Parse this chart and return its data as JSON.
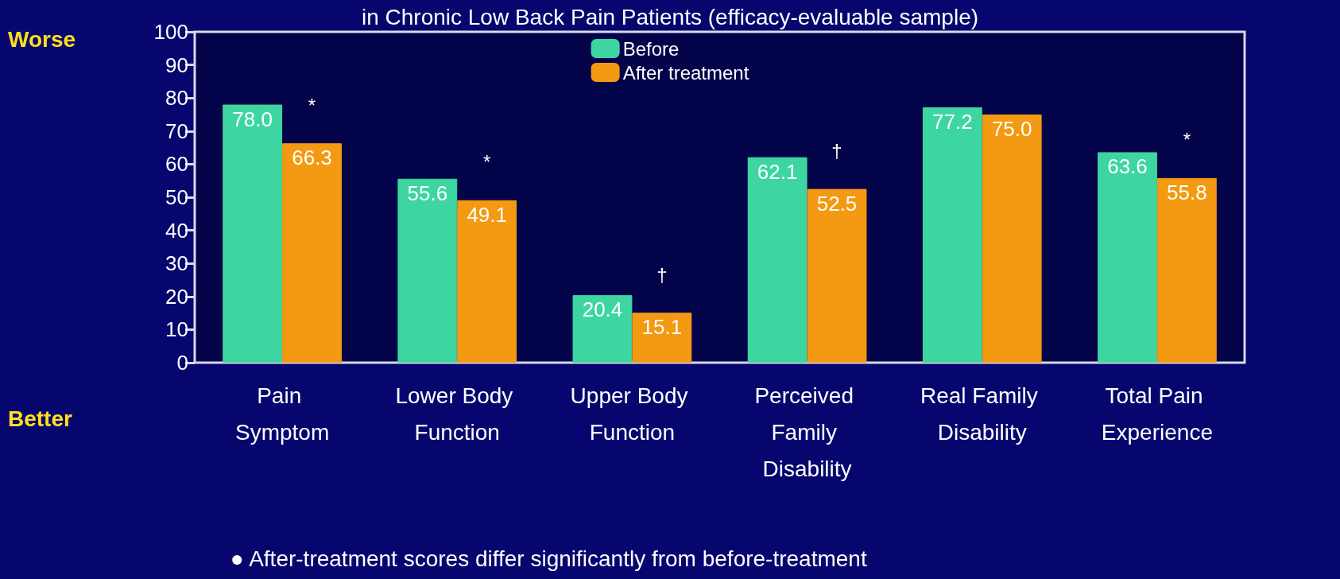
{
  "chart_data": {
    "type": "bar",
    "title": "in Chronic Low Back Pain Patients (efficacy-evaluable sample)",
    "categories": [
      "Pain Symptom",
      "Lower Body Function",
      "Upper Body Function",
      "Perceived Family Disability",
      "Real Family Disability",
      "Total Pain Experience"
    ],
    "series": [
      {
        "name": "Before",
        "color": "#3ed6a0",
        "values": [
          78.0,
          55.6,
          20.4,
          62.1,
          77.2,
          63.6
        ],
        "value_labels": [
          "78.0",
          "55.6",
          "20.4",
          "62.1",
          "77.2",
          "63.6"
        ]
      },
      {
        "name": "After treatment",
        "color": "#f39a12",
        "values": [
          66.3,
          49.1,
          15.1,
          52.5,
          75.0,
          55.8
        ],
        "value_labels": [
          "66.3",
          "49.1",
          "15.1",
          "52.5",
          "75.0",
          "55.8"
        ]
      }
    ],
    "ylim": [
      0,
      100
    ],
    "yticks": [
      0,
      10,
      20,
      30,
      40,
      50,
      60,
      70,
      80,
      90,
      100
    ],
    "legend": "top",
    "annotations": [
      "Worse",
      "Better",
      "● After-treatment scores differ significantly from before-treatment",
      {
        "text": "*",
        "x": "Pain Symptom",
        "y": 66.3
      },
      {
        "text": "*",
        "x": "Lower Body Function",
        "y": 49.1
      },
      {
        "text": "†",
        "x": "Upper Body Function",
        "y": 15.1
      },
      {
        "text": "†",
        "x": "Perceived Family Disability",
        "y": 52.5
      },
      {
        "text": "*",
        "x": "Total Pain Experience",
        "y": 55.8
      }
    ]
  }
}
